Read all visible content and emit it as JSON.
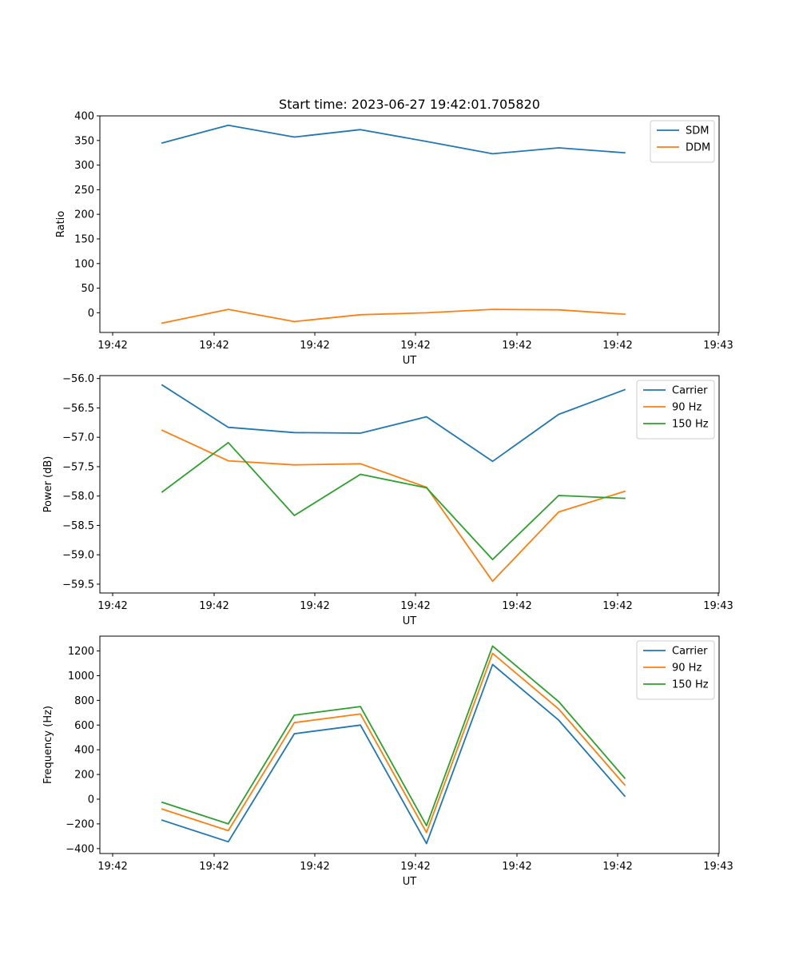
{
  "figure": {
    "title": "Start time: 2023-06-27 19:42:01.705820"
  },
  "colors": {
    "blue": "#1f77b4",
    "orange": "#ff7f0e",
    "green": "#2ca02c"
  },
  "chart_data": [
    {
      "type": "line",
      "title": "Start time: 2023-06-27 19:42:01.705820",
      "xlabel": "UT",
      "ylabel": "Ratio",
      "x_tick_labels": [
        "19:42",
        "19:42",
        "19:42",
        "19:42",
        "19:42",
        "19:42",
        "19:42",
        "19:42",
        "19:43"
      ],
      "ylim": [
        -40,
        400
      ],
      "y_ticks": [
        0,
        50,
        100,
        150,
        200,
        250,
        300,
        350,
        400
      ],
      "legend": "top-right",
      "grid": false,
      "series": [
        {
          "name": "SDM",
          "color": "blue",
          "values": [
            345,
            381,
            357,
            372,
            348,
            323,
            335,
            325
          ]
        },
        {
          "name": "DDM",
          "color": "orange",
          "values": [
            -21,
            7,
            -18,
            -4,
            0,
            7,
            6,
            -3
          ]
        }
      ]
    },
    {
      "type": "line",
      "title": "",
      "xlabel": "UT",
      "ylabel": "Power (dB)",
      "x_tick_labels": [
        "19:42",
        "19:42",
        "19:42",
        "19:42",
        "19:42",
        "19:42",
        "19:42",
        "19:42",
        "19:43"
      ],
      "ylim": [
        -59.65,
        -55.95
      ],
      "y_ticks": [
        -56.0,
        -56.5,
        -57.0,
        -57.5,
        -58.0,
        -58.5,
        -59.0,
        -59.5
      ],
      "legend": "top-right",
      "grid": false,
      "series": [
        {
          "name": "Carrier",
          "color": "blue",
          "values": [
            -56.11,
            -56.83,
            -56.92,
            -56.93,
            -56.65,
            -57.41,
            -56.61,
            -56.19
          ]
        },
        {
          "name": "90 Hz",
          "color": "orange",
          "values": [
            -56.88,
            -57.4,
            -57.47,
            -57.45,
            -57.85,
            -59.45,
            -58.27,
            -57.92
          ]
        },
        {
          "name": "150 Hz",
          "color": "green",
          "values": [
            -57.93,
            -57.09,
            -58.33,
            -57.63,
            -57.86,
            -59.08,
            -57.99,
            -58.04
          ]
        }
      ]
    },
    {
      "type": "line",
      "title": "",
      "xlabel": "UT",
      "ylabel": "Frequency (Hz)",
      "x_tick_labels": [
        "19:42",
        "19:42",
        "19:42",
        "19:42",
        "19:42",
        "19:42",
        "19:42",
        "19:42",
        "19:43"
      ],
      "ylim": [
        -440,
        1320
      ],
      "y_ticks": [
        -400,
        -200,
        0,
        200,
        400,
        600,
        800,
        1000,
        1200
      ],
      "legend": "top-right",
      "grid": false,
      "series": [
        {
          "name": "Carrier",
          "color": "blue",
          "values": [
            -170,
            -345,
            530,
            600,
            -360,
            1090,
            640,
            25
          ]
        },
        {
          "name": "90 Hz",
          "color": "orange",
          "values": [
            -80,
            -255,
            620,
            690,
            -270,
            1180,
            730,
            115
          ]
        },
        {
          "name": "150 Hz",
          "color": "green",
          "values": [
            -25,
            -200,
            680,
            750,
            -215,
            1240,
            790,
            170
          ]
        }
      ]
    }
  ]
}
